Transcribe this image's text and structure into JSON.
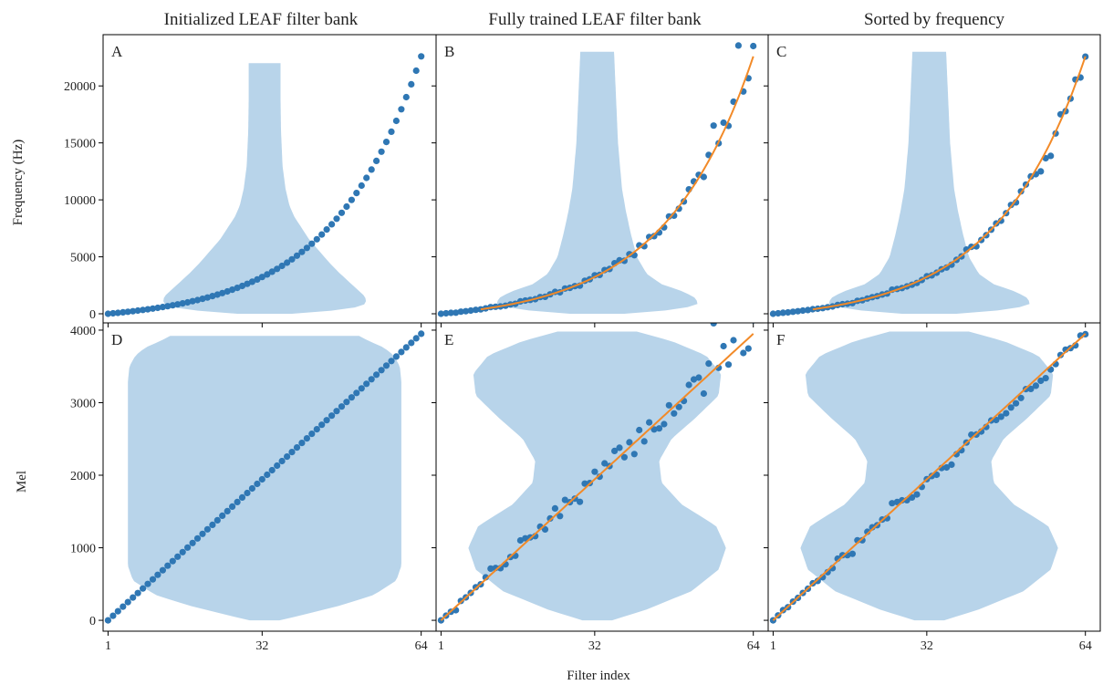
{
  "column_titles": [
    "Initialized LEAF filter bank",
    "Fully trained LEAF filter bank",
    "Sorted by frequency"
  ],
  "axis_labels": {
    "top_ylabel": "Frequency (Hz)",
    "bottom_ylabel": "Mel",
    "xlabel": "Filter index"
  },
  "colors": {
    "points": "#2f77b4",
    "fit_line": "#f28a28",
    "violin": "#b8d4ea"
  },
  "chart_data": [
    {
      "type": "scatter",
      "panel": "A",
      "title": "Initialized LEAF filter bank",
      "ylabel": "Frequency (Hz)",
      "xlim": [
        0,
        67
      ],
      "ylim": [
        -800,
        24500
      ],
      "xticks": [
        1,
        32,
        64
      ],
      "xtick_labels": [
        "",
        "",
        ""
      ],
      "yticks": [
        0,
        5000,
        10000,
        15000,
        20000
      ],
      "ytick_labels": [
        "0",
        "5000",
        "10000",
        "15000",
        "20000"
      ],
      "series": [
        {
          "kind": "points",
          "generator": "mel_hz",
          "mel_max": 3950,
          "x_start": 1,
          "x_end": 64,
          "count": 64,
          "jitter": 0
        },
        {
          "kind": "violin",
          "center": 32.5,
          "y_range": [
            0,
            22000
          ],
          "profile": [
            [
              0,
              5.5
            ],
            [
              400,
              17
            ],
            [
              800,
              20
            ],
            [
              1200,
              20.5
            ],
            [
              1600,
              20
            ],
            [
              2000,
              19
            ],
            [
              2800,
              17
            ],
            [
              3600,
              15
            ],
            [
              4500,
              13
            ],
            [
              5500,
              11
            ],
            [
              6500,
              9
            ],
            [
              7500,
              7.5
            ],
            [
              8500,
              6
            ],
            [
              9500,
              5
            ],
            [
              11000,
              4.2
            ],
            [
              13000,
              3.6
            ],
            [
              16000,
              3.3
            ],
            [
              19000,
              3.2
            ],
            [
              22000,
              3.2
            ]
          ]
        }
      ]
    },
    {
      "type": "scatter",
      "panel": "B",
      "title": "Fully trained LEAF filter bank",
      "xlim": [
        0,
        67
      ],
      "ylim": [
        -800,
        24500
      ],
      "xticks": [
        1,
        32,
        64
      ],
      "xtick_labels": [
        "",
        "",
        ""
      ],
      "yticks": [
        0,
        5000,
        10000,
        15000,
        20000
      ],
      "ytick_labels": [
        "",
        "",
        "",
        "",
        ""
      ],
      "series": [
        {
          "kind": "points",
          "generator": "mel_hz",
          "mel_max": 3950,
          "x_start": 1,
          "x_end": 64,
          "count": 64,
          "jitter": 0.06,
          "seed": 7
        },
        {
          "kind": "fit",
          "generator": "mel_hz",
          "mel_max": 3950,
          "x_start": 9,
          "x_end": 64
        },
        {
          "kind": "violin",
          "center": 32.5,
          "y_range": [
            0,
            23000
          ],
          "profile": [
            [
              0,
              5.5
            ],
            [
              400,
              17
            ],
            [
              900,
              20.5
            ],
            [
              1500,
              19.5
            ],
            [
              2000,
              17
            ],
            [
              2600,
              13
            ],
            [
              3500,
              10
            ],
            [
              5000,
              8
            ],
            [
              7000,
              6.8
            ],
            [
              9000,
              5.8
            ],
            [
              11000,
              5
            ],
            [
              13000,
              4.6
            ],
            [
              15000,
              4.2
            ],
            [
              17000,
              4
            ],
            [
              19000,
              3.8
            ],
            [
              21000,
              3.6
            ],
            [
              23000,
              3.4
            ]
          ]
        }
      ]
    },
    {
      "type": "scatter",
      "panel": "C",
      "title": "Sorted by frequency",
      "xlim": [
        0,
        67
      ],
      "ylim": [
        -800,
        24500
      ],
      "xticks": [
        1,
        32,
        64
      ],
      "xtick_labels": [
        "",
        "",
        ""
      ],
      "yticks": [
        0,
        5000,
        10000,
        15000,
        20000
      ],
      "ytick_labels": [
        "",
        "",
        "",
        "",
        ""
      ],
      "series": [
        {
          "kind": "points",
          "generator": "mel_hz",
          "mel_max": 3950,
          "x_start": 1,
          "x_end": 64,
          "count": 64,
          "jitter": 0.04,
          "seed": 11,
          "sorted": true
        },
        {
          "kind": "fit",
          "generator": "mel_hz",
          "mel_max": 3950,
          "x_start": 9,
          "x_end": 64
        },
        {
          "kind": "violin",
          "center": 32.5,
          "y_range": [
            0,
            23000
          ],
          "profile": [
            [
              0,
              5.5
            ],
            [
              400,
              17
            ],
            [
              900,
              20.5
            ],
            [
              1500,
              19.5
            ],
            [
              2000,
              17
            ],
            [
              2600,
              13
            ],
            [
              3500,
              10
            ],
            [
              5000,
              8
            ],
            [
              7000,
              6.8
            ],
            [
              9000,
              5.8
            ],
            [
              11000,
              5
            ],
            [
              13000,
              4.6
            ],
            [
              15000,
              4.2
            ],
            [
              17000,
              4
            ],
            [
              19000,
              3.8
            ],
            [
              21000,
              3.6
            ],
            [
              23000,
              3.4
            ]
          ]
        }
      ]
    },
    {
      "type": "scatter",
      "panel": "D",
      "ylabel": "Mel",
      "xlim": [
        0,
        67
      ],
      "ylim": [
        -150,
        4100
      ],
      "xticks": [
        1,
        32,
        64
      ],
      "xtick_labels": [
        "1",
        "32",
        "64"
      ],
      "yticks": [
        0,
        1000,
        2000,
        3000,
        4000
      ],
      "ytick_labels": [
        "0",
        "1000",
        "2000",
        "3000",
        "4000"
      ],
      "series": [
        {
          "kind": "points",
          "generator": "linear_mel",
          "mel_max": 3950,
          "x_start": 1,
          "x_end": 64,
          "count": 64,
          "jitter": 0
        },
        {
          "kind": "violin",
          "center": 32.5,
          "y_range": [
            0,
            3920
          ],
          "profile": [
            [
              0,
              3
            ],
            [
              80,
              8
            ],
            [
              200,
              15
            ],
            [
              350,
              22
            ],
            [
              550,
              26.5
            ],
            [
              750,
              27.5
            ],
            [
              1200,
              27.5
            ],
            [
              2000,
              27.5
            ],
            [
              2800,
              27.5
            ],
            [
              3300,
              27.5
            ],
            [
              3500,
              27.2
            ],
            [
              3650,
              26
            ],
            [
              3760,
              24
            ],
            [
              3850,
              21
            ],
            [
              3920,
              19
            ]
          ]
        }
      ]
    },
    {
      "type": "scatter",
      "panel": "E",
      "xlim": [
        0,
        67
      ],
      "ylim": [
        -150,
        4100
      ],
      "xticks": [
        1,
        32,
        64
      ],
      "xtick_labels": [
        "1",
        "32",
        "64"
      ],
      "yticks": [
        0,
        1000,
        2000,
        3000,
        4000
      ],
      "ytick_labels": [
        "",
        "",
        "",
        "",
        ""
      ],
      "series": [
        {
          "kind": "points",
          "generator": "linear_mel",
          "mel_max": 3950,
          "x_start": 1,
          "x_end": 64,
          "count": 64,
          "jitter": 0.07,
          "seed": 7
        },
        {
          "kind": "fit",
          "generator": "linear_mel",
          "mel_max": 3950,
          "x_start": 1,
          "x_end": 64
        },
        {
          "kind": "violin",
          "center": 32.5,
          "y_range": [
            0,
            3980
          ],
          "profile": [
            [
              0,
              3
            ],
            [
              150,
              10
            ],
            [
              400,
              19
            ],
            [
              700,
              24.5
            ],
            [
              1000,
              26
            ],
            [
              1300,
              24
            ],
            [
              1600,
              17
            ],
            [
              1900,
              13
            ],
            [
              2200,
              12.5
            ],
            [
              2500,
              15
            ],
            [
              2800,
              20
            ],
            [
              3100,
              24.5
            ],
            [
              3400,
              25
            ],
            [
              3650,
              22
            ],
            [
              3850,
              15
            ],
            [
              3980,
              8
            ]
          ]
        }
      ]
    },
    {
      "type": "scatter",
      "panel": "F",
      "xlim": [
        0,
        67
      ],
      "ylim": [
        -150,
        4100
      ],
      "xticks": [
        1,
        32,
        64
      ],
      "xtick_labels": [
        "1",
        "32",
        "64"
      ],
      "yticks": [
        0,
        1000,
        2000,
        3000,
        4000
      ],
      "ytick_labels": [
        "",
        "",
        "",
        "",
        ""
      ],
      "series": [
        {
          "kind": "points",
          "generator": "linear_mel",
          "mel_max": 3950,
          "x_start": 1,
          "x_end": 64,
          "count": 64,
          "jitter": 0.05,
          "seed": 11,
          "sorted": true
        },
        {
          "kind": "fit",
          "generator": "linear_mel",
          "mel_max": 3950,
          "x_start": 1,
          "x_end": 64
        },
        {
          "kind": "violin",
          "center": 32.5,
          "y_range": [
            0,
            3980
          ],
          "profile": [
            [
              0,
              3
            ],
            [
              150,
              10
            ],
            [
              400,
              19
            ],
            [
              700,
              24.5
            ],
            [
              1000,
              26
            ],
            [
              1300,
              24
            ],
            [
              1600,
              17
            ],
            [
              1900,
              13
            ],
            [
              2200,
              12.5
            ],
            [
              2500,
              15
            ],
            [
              2800,
              20
            ],
            [
              3100,
              24.5
            ],
            [
              3400,
              25
            ],
            [
              3650,
              22
            ],
            [
              3850,
              15
            ],
            [
              3980,
              8
            ]
          ]
        }
      ]
    }
  ]
}
